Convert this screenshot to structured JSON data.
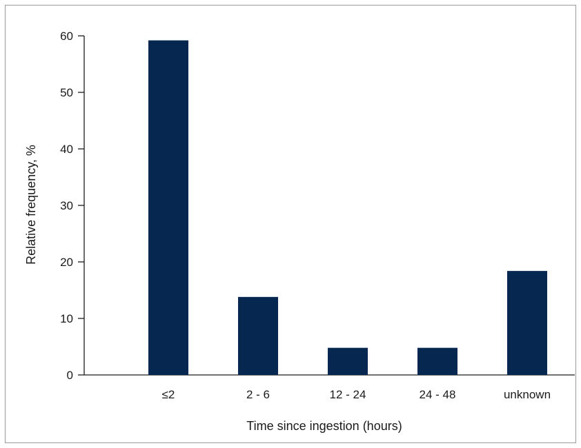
{
  "chart_data": {
    "type": "bar",
    "categories": [
      "≤2",
      "2 - 6",
      "12 - 24",
      "24 - 48",
      "unknown"
    ],
    "values": [
      59.2,
      13.8,
      4.8,
      4.8,
      18.4
    ],
    "title": "",
    "xlabel": "Time since ingestion (hours)",
    "ylabel": "Relative frequency, %",
    "ylim": [
      0,
      60
    ],
    "yticks": [
      0,
      10,
      20,
      30,
      40,
      50,
      60
    ],
    "grid": false,
    "bar_color": "#062850"
  }
}
